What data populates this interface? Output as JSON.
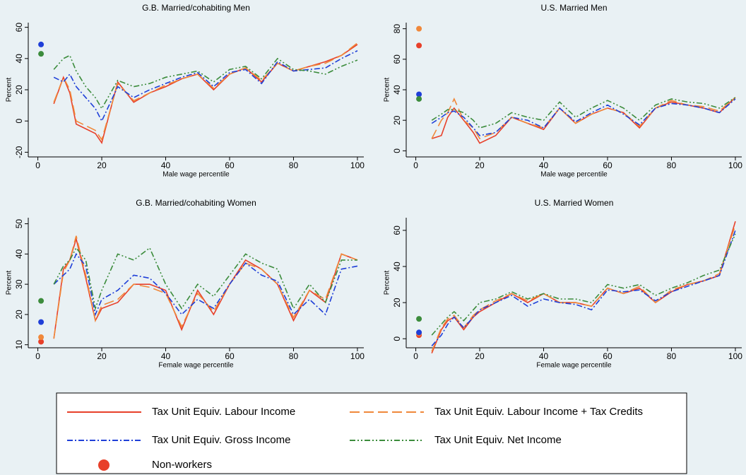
{
  "chart_data": [
    {
      "type": "line",
      "title": "G.B. Married/cohabiting Men",
      "xlabel": "Male wage percentile",
      "ylabel": "Percent",
      "x": [
        5,
        8,
        10,
        12,
        15,
        18,
        20,
        25,
        30,
        35,
        40,
        45,
        50,
        55,
        60,
        65,
        70,
        75,
        80,
        85,
        90,
        95,
        100
      ],
      "xlim": [
        -3,
        102
      ],
      "xticks": [
        0,
        20,
        40,
        60,
        80,
        100
      ],
      "ylim": [
        -23,
        63
      ],
      "yticks": [
        -20,
        0,
        20,
        40,
        60
      ],
      "nonworker_x": 1,
      "nonworker_label": "Non-workers",
      "series": [
        {
          "name": "Tax Unit Equiv. Labour Income",
          "color": "#e8402a",
          "dash": "solid",
          "nonworker": null,
          "values": [
            11,
            28,
            18,
            -2,
            -5,
            -8,
            -14,
            25,
            12,
            18,
            22,
            27,
            30,
            20,
            30,
            34,
            25,
            37,
            32,
            35,
            38,
            42,
            49
          ]
        },
        {
          "name": "Tax Unit Equiv. Labour Income + Tax Credits",
          "color": "#f0883a",
          "dash": "longdash",
          "nonworker": null,
          "values": [
            12,
            28,
            20,
            0,
            -3,
            -6,
            -12,
            24,
            13,
            18,
            23,
            27,
            30,
            21,
            30,
            34,
            26,
            37,
            32,
            35,
            37,
            42,
            50
          ]
        },
        {
          "name": "Tax Unit Equiv. Gross Income",
          "color": "#1f3fd8",
          "dash": "dashdot",
          "nonworker": 49,
          "values": [
            28,
            25,
            30,
            22,
            15,
            8,
            0,
            22,
            15,
            20,
            24,
            28,
            31,
            22,
            31,
            33,
            24,
            38,
            32,
            33,
            34,
            40,
            45
          ]
        },
        {
          "name": "Tax Unit Equiv. Net Income",
          "color": "#3c8c3c",
          "dash": "dashdotdot",
          "nonworker": 43,
          "values": [
            33,
            40,
            42,
            32,
            22,
            15,
            8,
            26,
            22,
            24,
            28,
            30,
            32,
            25,
            33,
            35,
            27,
            40,
            33,
            32,
            30,
            35,
            39
          ]
        }
      ]
    },
    {
      "type": "line",
      "title": "U.S. Married Men",
      "xlabel": "Male wage percentile",
      "ylabel": "Percent",
      "x": [
        5,
        8,
        10,
        12,
        15,
        18,
        20,
        25,
        30,
        35,
        40,
        45,
        50,
        55,
        60,
        65,
        70,
        75,
        80,
        85,
        90,
        95,
        100
      ],
      "xlim": [
        -3,
        102
      ],
      "xticks": [
        0,
        20,
        40,
        60,
        80,
        100
      ],
      "ylim": [
        -4,
        84
      ],
      "yticks": [
        0,
        20,
        40,
        60,
        80
      ],
      "nonworker_x": 1,
      "series": [
        {
          "name": "Tax Unit Equiv. Labour Income",
          "color": "#e8402a",
          "dash": "solid",
          "nonworker": 69,
          "values": [
            8,
            10,
            22,
            28,
            20,
            12,
            5,
            10,
            22,
            18,
            14,
            28,
            18,
            24,
            28,
            25,
            15,
            28,
            32,
            30,
            28,
            25,
            35
          ]
        },
        {
          "name": "Tax Unit Equiv. Labour Income + Tax Credits",
          "color": "#f0883a",
          "dash": "longdash",
          "nonworker": 80,
          "values": [
            8,
            20,
            25,
            34,
            20,
            15,
            8,
            12,
            22,
            18,
            15,
            28,
            18,
            24,
            28,
            25,
            16,
            28,
            33,
            30,
            29,
            26,
            35
          ]
        },
        {
          "name": "Tax Unit Equiv. Gross Income",
          "color": "#1f3fd8",
          "dash": "dashdot",
          "nonworker": 37,
          "values": [
            18,
            22,
            25,
            26,
            22,
            15,
            10,
            12,
            22,
            20,
            15,
            28,
            19,
            25,
            30,
            24,
            17,
            28,
            31,
            30,
            28,
            25,
            34
          ]
        },
        {
          "name": "Tax Unit Equiv. Net Income",
          "color": "#3c8c3c",
          "dash": "dashdotdot",
          "nonworker": 34,
          "values": [
            20,
            24,
            27,
            27,
            25,
            20,
            15,
            18,
            25,
            22,
            20,
            32,
            22,
            28,
            33,
            28,
            20,
            30,
            34,
            32,
            31,
            28,
            35
          ]
        }
      ]
    },
    {
      "type": "line",
      "title": "G.B. Married/cohabiting Women",
      "xlabel": "Female wage percentile",
      "ylabel": "Percent",
      "x": [
        5,
        8,
        10,
        12,
        15,
        18,
        20,
        25,
        30,
        35,
        40,
        45,
        50,
        55,
        60,
        65,
        70,
        75,
        80,
        85,
        90,
        95,
        100
      ],
      "xlim": [
        -3,
        102
      ],
      "xticks": [
        0,
        20,
        40,
        60,
        80,
        100
      ],
      "ylim": [
        9,
        52
      ],
      "yticks": [
        10,
        20,
        30,
        40,
        50
      ],
      "nonworker_x": 1,
      "series": [
        {
          "name": "Tax Unit Equiv. Labour Income",
          "color": "#e8402a",
          "dash": "solid",
          "nonworker": 11,
          "values": [
            12,
            35,
            38,
            45,
            32,
            18,
            22,
            24,
            30,
            30,
            28,
            15,
            28,
            20,
            30,
            38,
            35,
            30,
            18,
            28,
            24,
            40,
            38
          ]
        },
        {
          "name": "Tax Unit Equiv. Labour Income + Tax Credits",
          "color": "#f0883a",
          "dash": "longdash",
          "nonworker": 12.5,
          "values": [
            12,
            34,
            38,
            46,
            33,
            18,
            23,
            25,
            30,
            29,
            27,
            16,
            27,
            21,
            30,
            37,
            35,
            30,
            19,
            28,
            25,
            40,
            38
          ]
        },
        {
          "name": "Tax Unit Equiv. Gross Income",
          "color": "#1f3fd8",
          "dash": "dashdot",
          "nonworker": 17.5,
          "values": [
            30,
            33,
            35,
            40,
            36,
            20,
            25,
            28,
            33,
            32,
            27,
            20,
            25,
            22,
            30,
            37,
            33,
            31,
            20,
            25,
            20,
            35,
            36
          ]
        },
        {
          "name": "Tax Unit Equiv. Net Income",
          "color": "#3c8c3c",
          "dash": "dashdotdot",
          "nonworker": 24.5,
          "values": [
            30,
            36,
            38,
            42,
            38,
            22,
            28,
            40,
            38,
            42,
            30,
            22,
            30,
            26,
            33,
            40,
            37,
            35,
            22,
            30,
            24,
            38,
            38
          ]
        }
      ]
    },
    {
      "type": "line",
      "title": "U.S. Married Women",
      "xlabel": "Female wage percentile",
      "ylabel": "Percent",
      "x": [
        5,
        8,
        10,
        12,
        15,
        18,
        20,
        25,
        30,
        35,
        40,
        45,
        50,
        55,
        60,
        65,
        70,
        75,
        80,
        85,
        90,
        95,
        100
      ],
      "xlim": [
        -3,
        102
      ],
      "xticks": [
        0,
        20,
        40,
        60,
        80,
        100
      ],
      "ylim": [
        -5,
        67
      ],
      "yticks": [
        0,
        20,
        40,
        60
      ],
      "nonworker_x": 1,
      "series": [
        {
          "name": "Tax Unit Equiv. Labour Income",
          "color": "#e8402a",
          "dash": "solid",
          "nonworker": 2,
          "values": [
            -8,
            5,
            10,
            12,
            5,
            12,
            15,
            20,
            25,
            20,
            25,
            20,
            20,
            18,
            28,
            25,
            28,
            20,
            26,
            30,
            32,
            35,
            65
          ]
        },
        {
          "name": "Tax Unit Equiv. Labour Income + Tax Credits",
          "color": "#f0883a",
          "dash": "longdash",
          "nonworker": 3,
          "values": [
            -7,
            6,
            11,
            13,
            6,
            13,
            16,
            21,
            25,
            21,
            25,
            20,
            20,
            18,
            28,
            25,
            29,
            20,
            27,
            30,
            32,
            36,
            63
          ]
        },
        {
          "name": "Tax Unit Equiv. Gross Income",
          "color": "#1f3fd8",
          "dash": "dashdot",
          "nonworker": 3.5,
          "values": [
            -4,
            2,
            8,
            12,
            6,
            12,
            16,
            20,
            24,
            18,
            22,
            20,
            19,
            16,
            27,
            26,
            27,
            21,
            26,
            29,
            32,
            35,
            60
          ]
        },
        {
          "name": "Tax Unit Equiv. Net Income",
          "color": "#3c8c3c",
          "dash": "dashdotdot",
          "nonworker": 11,
          "values": [
            2,
            8,
            12,
            15,
            10,
            16,
            20,
            22,
            26,
            22,
            25,
            22,
            22,
            20,
            30,
            28,
            30,
            24,
            28,
            31,
            35,
            38,
            58
          ]
        }
      ]
    }
  ]
}
